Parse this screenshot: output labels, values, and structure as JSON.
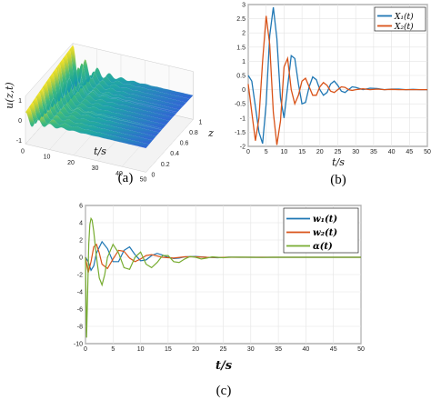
{
  "captions": {
    "a": "(a)",
    "b": "(b)",
    "c": "(c)"
  },
  "colors": {
    "blue": "#1f77b4",
    "orange": "#d95319",
    "green": "#77ac30"
  },
  "chart_data": [
    {
      "id": "a",
      "type": "surface3d",
      "zlabel": "u(z,t)",
      "xlabel": "t/s",
      "ylabel": "z",
      "x_ticks": [
        "0",
        "10",
        "20",
        "30",
        "40",
        "50"
      ],
      "y_ticks": [
        "0",
        "0.2",
        "0.4",
        "0.6",
        "0.8",
        "1"
      ],
      "z_ticks": [
        "1",
        "0",
        "-1"
      ],
      "xlim": [
        0,
        50
      ],
      "ylim": [
        0,
        1
      ],
      "zlim": [
        -1.2,
        1.2
      ]
    },
    {
      "id": "b",
      "type": "line",
      "xlabel": "t/s",
      "ylabel": "",
      "xlim": [
        0,
        50
      ],
      "ylim": [
        -2,
        3
      ],
      "x_ticks": [
        "0",
        "5",
        "10",
        "15",
        "20",
        "25",
        "30",
        "35",
        "40",
        "45",
        "50"
      ],
      "y_ticks": [
        "-2",
        "-1.5",
        "-1",
        "-0.5",
        "0",
        "0.5",
        "1",
        "1.5",
        "2",
        "2.5",
        "3"
      ],
      "legend": "top-right",
      "series": [
        {
          "name": "X₁(t)",
          "color": "#1f77b4",
          "x": [
            0,
            1,
            2,
            3,
            4,
            5,
            6,
            7,
            8,
            9,
            10,
            11,
            12,
            13,
            14,
            15,
            16,
            17,
            18,
            19,
            20,
            21,
            22,
            23,
            24,
            25,
            26,
            27,
            28,
            29,
            30,
            32,
            34,
            36,
            38,
            40,
            42,
            44,
            46,
            48,
            50
          ],
          "y": [
            0.5,
            0.3,
            -0.6,
            -1.5,
            -1.9,
            -0.5,
            1.9,
            2.9,
            1.8,
            -0.3,
            -1.0,
            0.1,
            1.2,
            1.1,
            0.2,
            -0.5,
            -0.45,
            0.1,
            0.45,
            0.35,
            0.0,
            -0.2,
            -0.1,
            0.2,
            0.3,
            0.15,
            -0.05,
            -0.1,
            0.0,
            0.1,
            0.08,
            0.0,
            0.05,
            0.04,
            0.0,
            0.02,
            0.02,
            0.0,
            0.01,
            0.0,
            0.0
          ]
        },
        {
          "name": "X₂(t)",
          "color": "#d95319",
          "x": [
            0,
            1,
            2,
            3,
            4,
            5,
            6,
            7,
            8,
            9,
            10,
            11,
            12,
            13,
            14,
            15,
            16,
            17,
            18,
            19,
            20,
            21,
            22,
            23,
            24,
            25,
            26,
            27,
            28,
            29,
            30,
            32,
            34,
            36,
            38,
            40,
            42,
            44,
            46,
            48,
            50
          ],
          "y": [
            0.2,
            -0.8,
            -1.8,
            -1.0,
            1.0,
            2.6,
            1.6,
            -0.8,
            -1.95,
            -1.1,
            0.8,
            1.1,
            0.0,
            -0.5,
            -0.2,
            0.3,
            0.4,
            0.1,
            -0.2,
            -0.2,
            0.1,
            0.25,
            0.15,
            -0.05,
            -0.1,
            0.0,
            0.1,
            0.08,
            0.0,
            -0.03,
            0.0,
            0.03,
            0.0,
            0.02,
            0.0,
            0.01,
            0.0,
            0.0,
            0.0,
            0.0,
            0.0
          ]
        }
      ]
    },
    {
      "id": "c",
      "type": "line",
      "xlabel": "t/s",
      "ylabel": "",
      "xlim": [
        0,
        50
      ],
      "ylim": [
        -10,
        6
      ],
      "x_ticks": [
        "0",
        "5",
        "10",
        "15",
        "20",
        "25",
        "30",
        "35",
        "40",
        "45",
        "50"
      ],
      "y_ticks": [
        "-10",
        "-8",
        "-6",
        "-4",
        "-2",
        "0",
        "2",
        "4",
        "6"
      ],
      "legend": "top-right",
      "series": [
        {
          "name": "w₁(t)",
          "color": "#1f77b4",
          "x": [
            0,
            0.5,
            1,
            1.5,
            2,
            3,
            4,
            5,
            6,
            7,
            8,
            9,
            10,
            11,
            12,
            13,
            14,
            15,
            16,
            17,
            18,
            20,
            22,
            24,
            26,
            28,
            30,
            35,
            40,
            45,
            50
          ],
          "y": [
            0,
            -0.5,
            -1.5,
            -1.0,
            0.5,
            1.8,
            1.0,
            -0.5,
            -0.5,
            0.8,
            1.2,
            0.3,
            -0.4,
            -0.3,
            0.2,
            0.45,
            0.25,
            0.0,
            -0.15,
            -0.1,
            0.05,
            0.1,
            0.0,
            -0.05,
            0.02,
            0.0,
            0.0,
            0.0,
            0.0,
            0.0,
            0.0
          ]
        },
        {
          "name": "w₂(t)",
          "color": "#d95319",
          "x": [
            0,
            0.5,
            1,
            1.5,
            2,
            2.5,
            3,
            4,
            5,
            6,
            7,
            8,
            9,
            10,
            11,
            12,
            14,
            16,
            18,
            20,
            22,
            24,
            26,
            28,
            30,
            35,
            40,
            45,
            50
          ],
          "y": [
            0,
            -1.8,
            -0.5,
            1.2,
            1.5,
            0.5,
            -0.8,
            -1.3,
            -0.2,
            0.8,
            0.7,
            -0.1,
            -0.5,
            -0.2,
            0.2,
            0.3,
            0.0,
            -0.1,
            0.05,
            0.05,
            0.0,
            -0.02,
            0.0,
            0.0,
            0.0,
            0.0,
            0.0,
            0.0,
            0.0
          ]
        },
        {
          "name": "α(t)",
          "color": "#77ac30",
          "x": [
            0,
            0.2,
            0.4,
            0.6,
            0.8,
            1,
            1.2,
            1.5,
            2,
            2.5,
            3,
            3.5,
            4,
            5,
            6,
            7,
            8,
            9,
            10,
            11,
            12,
            13,
            14,
            15,
            16,
            17,
            18,
            19,
            20,
            21,
            22,
            23,
            24,
            25,
            26,
            28,
            30,
            32,
            34,
            36,
            38,
            40,
            45,
            50
          ],
          "y": [
            0,
            -9.3,
            -4,
            1.5,
            3.8,
            4.5,
            4.3,
            3.0,
            0.0,
            -2.4,
            -3.2,
            -2.0,
            0.0,
            1.5,
            0.5,
            -1.2,
            -1.4,
            0.0,
            0.6,
            -0.8,
            -1.2,
            -0.6,
            0.2,
            0.2,
            -0.5,
            -0.6,
            -0.2,
            0.1,
            0.0,
            -0.2,
            -0.1,
            0.05,
            0.0,
            -0.05,
            0.0,
            0.02,
            0.0,
            -0.02,
            0.0,
            0.0,
            0.0,
            0.0,
            0.0,
            0.0
          ]
        }
      ]
    }
  ]
}
